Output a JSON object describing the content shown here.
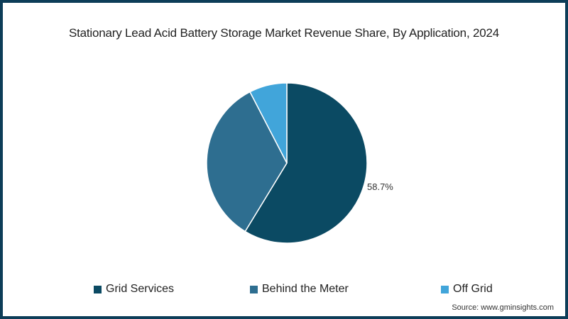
{
  "chart_data": {
    "type": "pie",
    "title": "Stationary Lead Acid Battery Storage Market Revenue Share, By Application, 2024",
    "categories": [
      "Grid Services",
      "Behind the Meter",
      "Off Grid"
    ],
    "values": [
      58.7,
      33.7,
      7.6
    ],
    "colors": [
      "#0b4a63",
      "#2e6e90",
      "#41a5da"
    ],
    "data_labels": [
      {
        "category": "Grid Services",
        "text": "58.7%"
      }
    ],
    "legend_position": "bottom",
    "start_angle": "12 o'clock, clockwise"
  },
  "title": "Stationary Lead Acid Battery Storage Market Revenue Share, By Application, 2024",
  "label_grid": "58.7%",
  "legend": [
    {
      "label": "Grid Services",
      "color": "#0b4a63"
    },
    {
      "label": "Behind the Meter",
      "color": "#2e6e90"
    },
    {
      "label": "Off Grid",
      "color": "#41a5da"
    }
  ],
  "source": "Source: www.gminsights.com"
}
